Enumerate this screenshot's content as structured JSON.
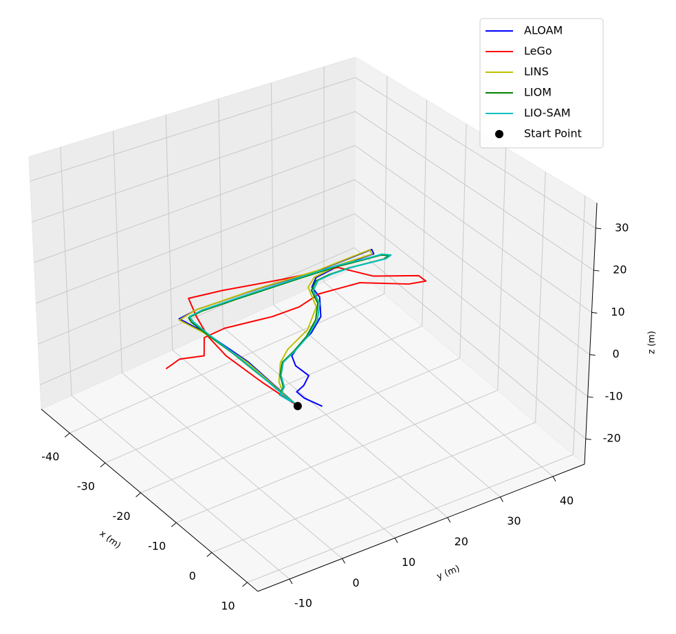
{
  "chart_data": {
    "type": "line3d",
    "xlabel": "x (m)",
    "ylabel": "y (m)",
    "zlabel": "z (m)",
    "xlim": [
      -48,
      13
    ],
    "ylim": [
      -16,
      46
    ],
    "zlim": [
      -26,
      36
    ],
    "xticks": [
      -40,
      -30,
      -20,
      -10,
      0,
      10
    ],
    "yticks": [
      -10,
      0,
      10,
      20,
      30,
      40
    ],
    "zticks": [
      -20,
      -10,
      0,
      10,
      20,
      30
    ],
    "grid": true,
    "legend": "upper right",
    "series": [
      {
        "name": "ALOAM",
        "color": "#0000ff",
        "x": [
          0,
          -14.9,
          -25.7,
          -31.3,
          -31.9,
          -31.3,
          -30.2,
          -30.4,
          -29.2,
          -29.5,
          -28.8,
          -26.9,
          -23.9,
          -19.2,
          -16.2,
          -14.2,
          -12.5,
          -9.8,
          -6.3,
          -4.4,
          -3.5,
          -1.3,
          2.2
        ],
        "y": [
          0,
          1.2,
          0.7,
          -0.3,
          3.5,
          14.9,
          25.8,
          36.2,
          35.7,
          29.3,
          24.3,
          22.1,
          21.4,
          18.2,
          14.2,
          10.3,
          7.8,
          6.6,
          6.6,
          4.3,
          2.3,
          2.2,
          3.1
        ],
        "z": [
          0,
          0,
          0,
          0,
          0,
          0,
          0,
          0,
          0,
          0,
          0,
          0,
          0,
          0,
          0,
          0,
          0,
          0,
          0,
          0,
          0,
          0,
          0
        ]
      },
      {
        "name": "LeGo",
        "color": "#ff0000",
        "x": [
          0,
          -8.9,
          -18.3,
          -24.6,
          -30.3,
          -35.3,
          -34.1,
          -31.3,
          -29.2,
          -24.1,
          -20.2,
          -18.3,
          -19.1,
          -23.7,
          -24.7,
          -23.4,
          -23.5,
          -25.0,
          -24.6,
          -20.3,
          -21.7,
          -20.6
        ],
        "y": [
          0,
          -0.5,
          -0.6,
          0.4,
          2.3,
          4.4,
          10.1,
          19.8,
          28.8,
          31.8,
          37.7,
          37.7,
          35.0,
          29.0,
          21.9,
          17.1,
          12.0,
          3.9,
          -0.3,
          -3.4,
          -7.1,
          -10.5
        ],
        "z": [
          0,
          0,
          0,
          0,
          0,
          0,
          0,
          0,
          0,
          0,
          0,
          0,
          0,
          0,
          0,
          0,
          0,
          0,
          0,
          0,
          0,
          0
        ]
      },
      {
        "name": "LINS",
        "color": "#bfbf00",
        "x": [
          0,
          -14.9,
          -25.7,
          -31.0,
          -31.9,
          -31.4,
          -30.3,
          -30.5,
          -29.3,
          -29.7,
          -29.0,
          -27.2,
          -21.9,
          -17.3,
          -14.4,
          -11.9,
          -7.4,
          -4.2,
          -2.0
        ],
        "y": [
          0,
          1.0,
          0.5,
          -0.5,
          3.3,
          14.7,
          25.6,
          35.9,
          35.4,
          29.1,
          24.1,
          21.6,
          19.3,
          14.3,
          8.4,
          5.2,
          1.7,
          0.3,
          0.1
        ],
        "z": [
          0,
          0,
          0,
          0,
          0,
          0,
          0,
          0,
          0,
          0,
          0,
          0,
          0,
          0,
          0,
          0,
          0,
          0,
          0
        ]
      },
      {
        "name": "LIOM",
        "color": "#008000",
        "x": [
          0,
          -6.2,
          -12.5,
          -18.6,
          -24.5,
          -29.4,
          -30.7,
          -31.1,
          -30.8,
          -30.4,
          -30.0,
          -29.5,
          -28.7,
          -28.3,
          -27.5,
          -27.1,
          -28.1,
          -28.3,
          -28.0,
          -26.2,
          -22.6,
          -18.9,
          -15.8,
          -13.5,
          -11.8,
          -8.9,
          -5.8,
          -4.3,
          -1.8
        ],
        "y": [
          0,
          0.3,
          0.5,
          0.7,
          0.6,
          0.7,
          1.1,
          3.9,
          10.3,
          16.5,
          22.7,
          28.8,
          33.4,
          36.4,
          37.4,
          36.1,
          30.3,
          26.6,
          23.7,
          21.5,
          20.1,
          17.0,
          13.0,
          9.0,
          5.5,
          3.0,
          1.4,
          -0.4,
          -0.1
        ],
        "z": [
          0,
          0,
          0,
          0,
          0,
          0,
          0,
          0,
          0,
          0,
          0,
          0,
          0,
          0,
          0,
          0,
          0,
          0,
          0,
          0,
          0,
          0,
          0,
          0,
          0,
          0,
          0,
          0,
          0
        ]
      },
      {
        "name": "LIO-SAM",
        "color": "#00bfbf",
        "x": [
          0,
          -6.1,
          -12.4,
          -18.5,
          -24.3,
          -29.3,
          -30.9,
          -31.3,
          -31.0,
          -30.6,
          -30.2,
          -29.7,
          -28.8,
          -28.4,
          -27.4,
          -27.0,
          -28.0,
          -28.2,
          -27.9,
          -26.0,
          -22.4,
          -18.7,
          -15.7,
          -13.4,
          -11.7,
          -8.8,
          -5.7,
          -4.2,
          -1.7
        ],
        "y": [
          0,
          0.2,
          0.6,
          0.8,
          0.8,
          1.0,
          1.4,
          4.2,
          10.6,
          16.8,
          23.0,
          29.1,
          33.7,
          36.7,
          37.7,
          36.4,
          30.6,
          26.9,
          24.0,
          21.7,
          20.3,
          17.2,
          13.2,
          9.1,
          5.6,
          3.1,
          1.5,
          -0.4,
          -0.1
        ],
        "z": [
          0,
          0,
          0,
          0,
          0,
          0,
          0,
          0,
          0,
          0,
          0,
          0,
          0,
          0,
          0,
          0,
          0,
          0,
          0,
          0,
          0,
          0,
          0,
          0,
          0,
          0,
          0,
          0,
          0
        ]
      },
      {
        "name": "Start Point",
        "color": "#000000",
        "mode": "markers",
        "x": [
          0
        ],
        "y": [
          0
        ],
        "z": [
          0
        ]
      }
    ]
  }
}
